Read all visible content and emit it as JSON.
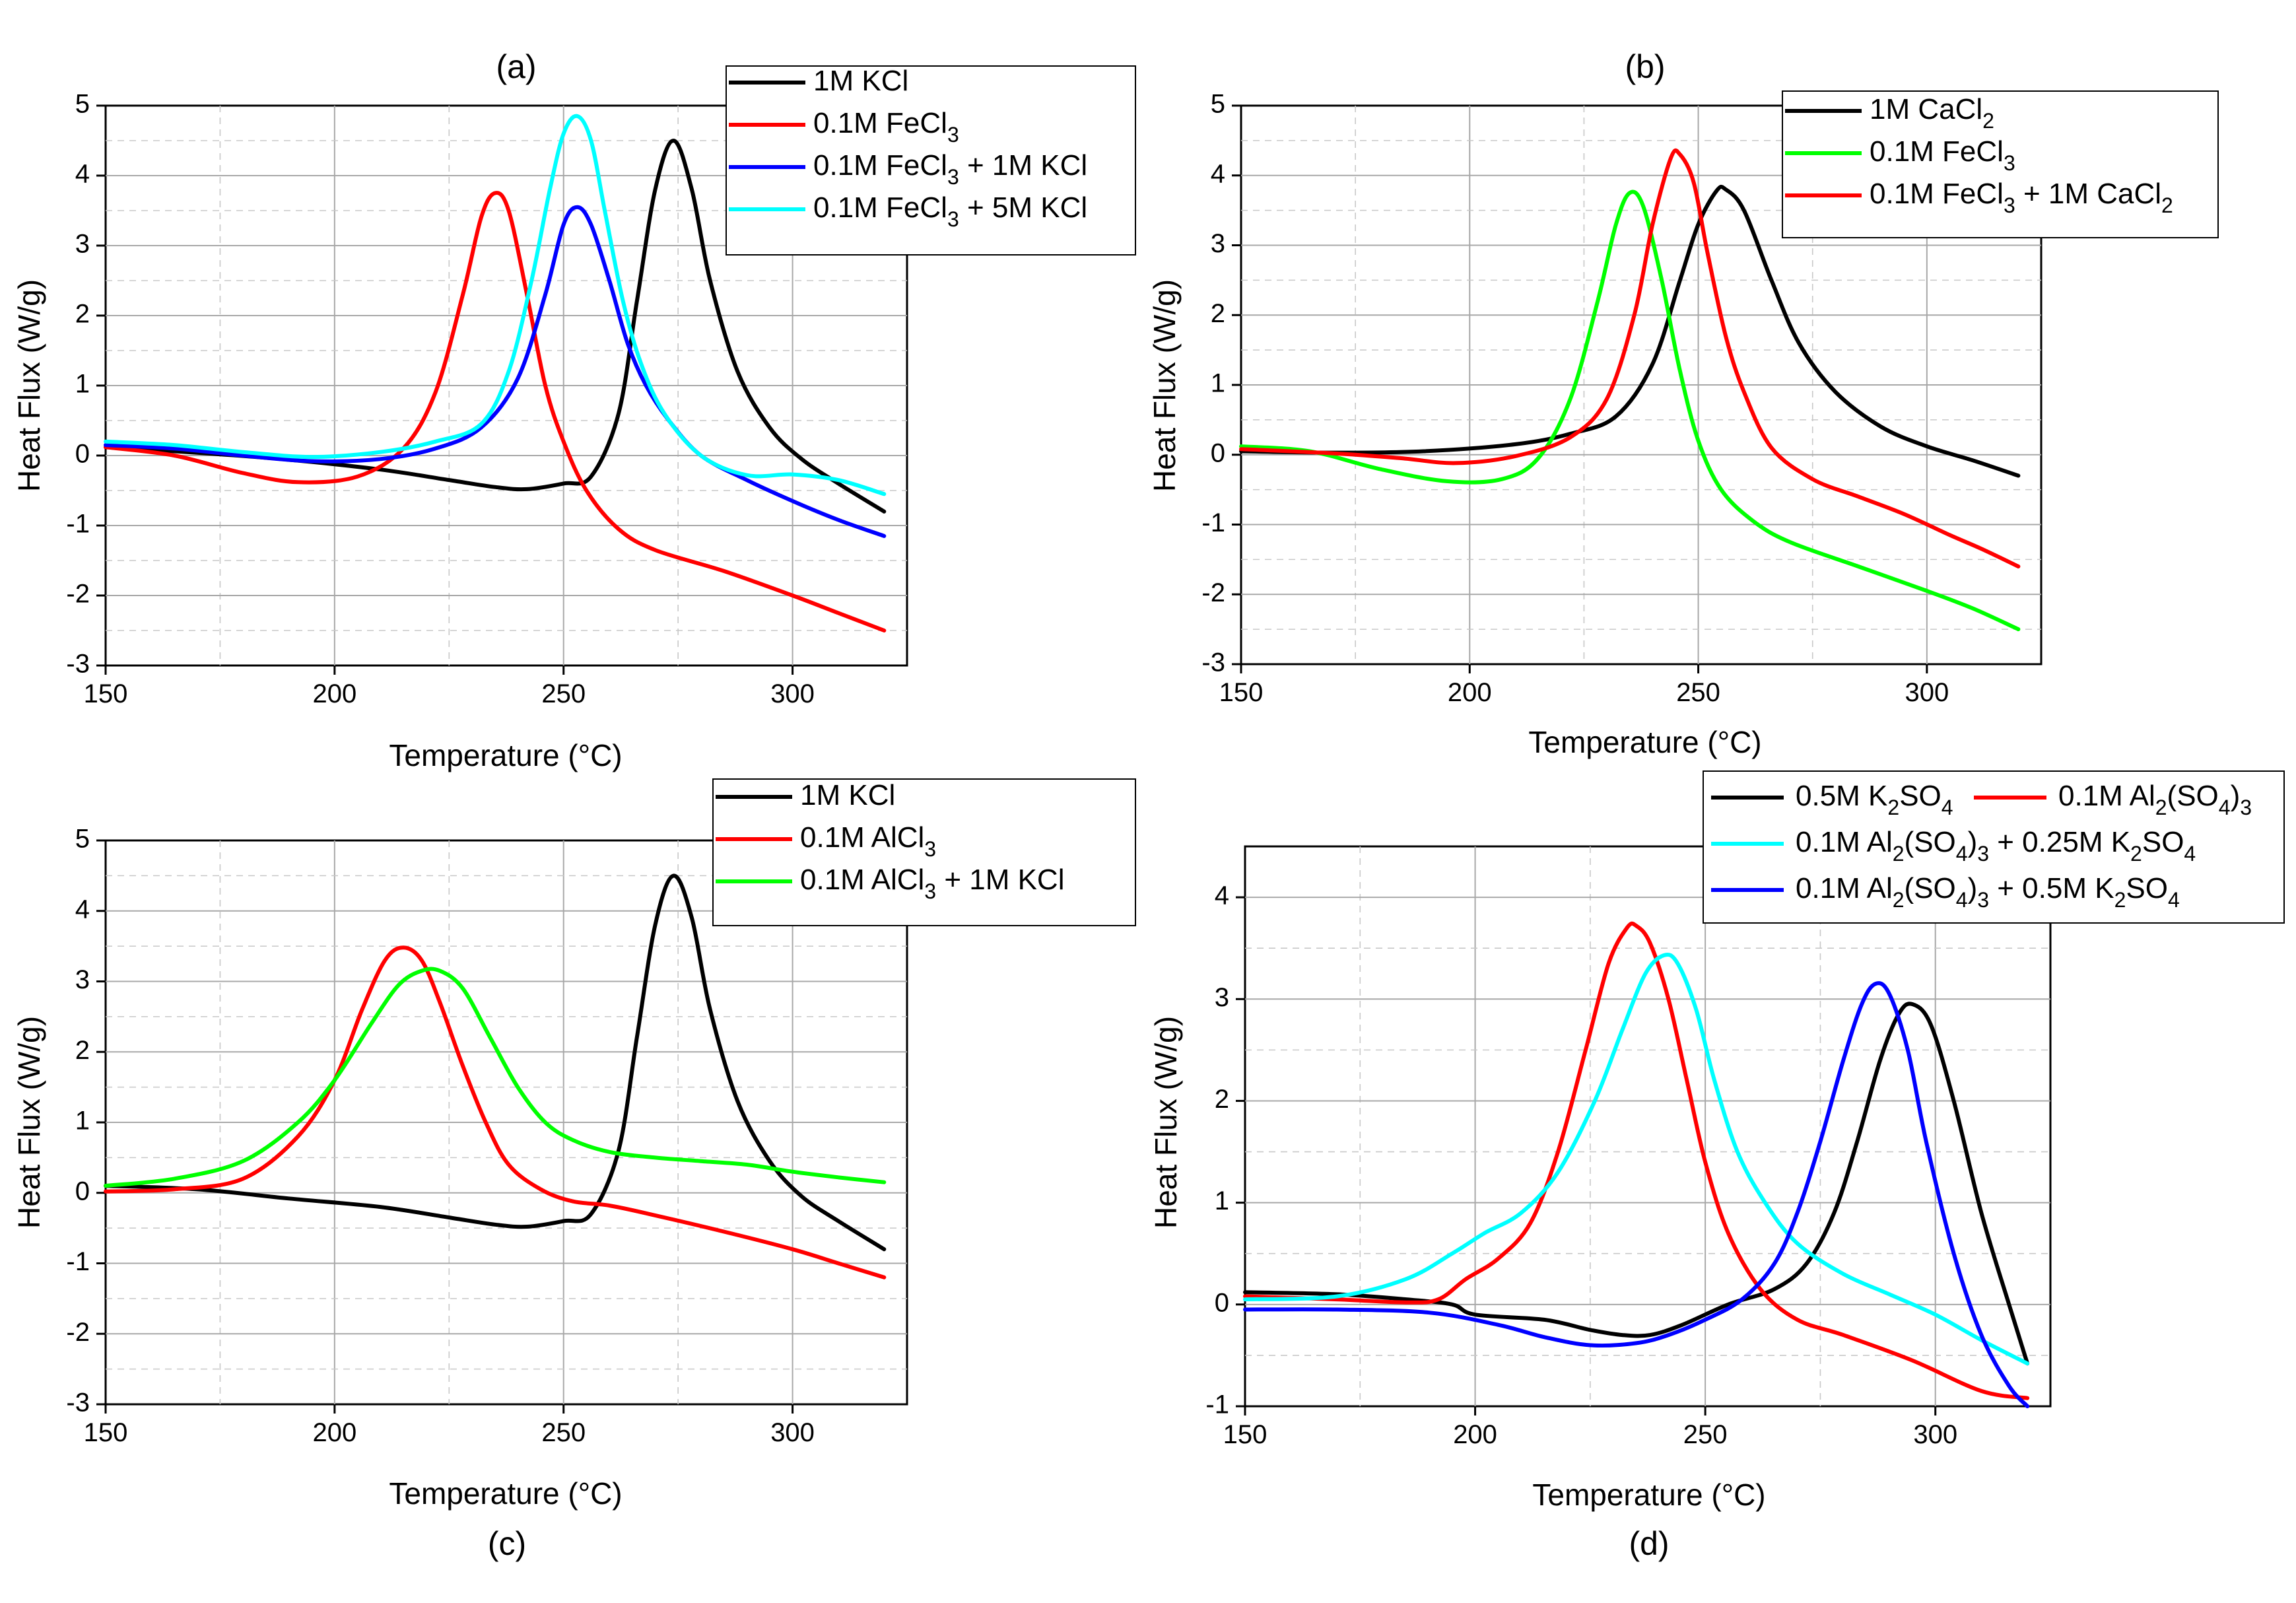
{
  "chart_data": [
    {
      "panel": "a",
      "type": "line",
      "title": "(a)",
      "xlabel": "Temperature (°C)",
      "ylabel": "Heat Flux (W/g)",
      "xlim": [
        150,
        325
      ],
      "ylim": [
        -3,
        5
      ],
      "xticks": [
        150,
        200,
        250,
        300
      ],
      "yticks": [
        -3,
        -2,
        -1,
        0,
        1,
        2,
        3,
        4,
        5
      ],
      "grid": true,
      "legend_position": "top-right",
      "series": [
        {
          "name": "1M KCl",
          "legend": [
            [
              "1M KCl",
              ""
            ]
          ],
          "color": "#000000",
          "x": [
            150,
            170,
            190,
            210,
            225,
            235,
            242,
            250,
            256,
            262,
            266,
            270,
            274,
            278,
            282,
            288,
            295,
            302,
            310,
            320
          ],
          "y": [
            0.12,
            0.04,
            -0.06,
            -0.2,
            -0.35,
            -0.45,
            -0.48,
            -0.4,
            -0.3,
            0.6,
            2.2,
            3.8,
            4.5,
            3.8,
            2.5,
            1.2,
            0.4,
            -0.05,
            -0.4,
            -0.8
          ]
        },
        {
          "name": "0.1M FeCl3",
          "legend": [
            [
              "0.1M FeCl",
              ""
            ],
            [
              "3",
              "sub"
            ]
          ],
          "color": "#ff0000",
          "x": [
            150,
            165,
            180,
            192,
            205,
            215,
            222,
            228,
            232,
            235,
            238,
            242,
            246,
            250,
            255,
            262,
            270,
            285,
            300,
            310,
            320
          ],
          "y": [
            0.12,
            0.0,
            -0.25,
            -0.38,
            -0.3,
            0.1,
            0.9,
            2.3,
            3.4,
            3.75,
            3.5,
            2.3,
            1.0,
            0.2,
            -0.5,
            -1.05,
            -1.35,
            -1.65,
            -2.0,
            -2.25,
            -2.5
          ]
        },
        {
          "name": "0.1M FeCl3 + 1M KCl",
          "legend": [
            [
              "0.1M FeCl",
              ""
            ],
            [
              "3",
              "sub"
            ],
            [
              " + 1M KCl",
              ""
            ]
          ],
          "color": "#0000ff",
          "x": [
            150,
            165,
            180,
            195,
            210,
            222,
            232,
            240,
            246,
            250,
            253,
            256,
            260,
            264,
            268,
            273,
            280,
            290,
            300,
            310,
            320
          ],
          "y": [
            0.15,
            0.1,
            0.0,
            -0.08,
            -0.05,
            0.1,
            0.4,
            1.1,
            2.3,
            3.3,
            3.55,
            3.3,
            2.5,
            1.6,
            1.0,
            0.5,
            0.0,
            -0.35,
            -0.65,
            -0.92,
            -1.15
          ]
        },
        {
          "name": "0.1M FeCl3 + 5M KCl",
          "legend": [
            [
              "0.1M FeCl",
              ""
            ],
            [
              "3",
              "sub"
            ],
            [
              " + 5M KCl",
              ""
            ]
          ],
          "color": "#00ffff",
          "x": [
            150,
            165,
            180,
            195,
            210,
            222,
            232,
            238,
            243,
            247,
            250,
            253,
            256,
            259,
            263,
            267,
            272,
            280,
            290,
            300,
            310,
            320
          ],
          "y": [
            0.2,
            0.15,
            0.05,
            -0.02,
            0.05,
            0.2,
            0.45,
            1.2,
            2.5,
            3.8,
            4.6,
            4.85,
            4.5,
            3.5,
            2.2,
            1.3,
            0.6,
            0.0,
            -0.28,
            -0.27,
            -0.35,
            -0.55
          ]
        }
      ]
    },
    {
      "panel": "b",
      "type": "line",
      "title": "(b)",
      "xlabel": "Temperature (°C)",
      "ylabel": "Heat Flux (W/g)",
      "xlim": [
        150,
        325
      ],
      "ylim": [
        -3,
        5
      ],
      "xticks": [
        150,
        200,
        250,
        300
      ],
      "yticks": [
        -3,
        -2,
        -1,
        0,
        1,
        2,
        3,
        4,
        5
      ],
      "grid": true,
      "legend_position": "top-right",
      "series": [
        {
          "name": "1M CaCl2",
          "legend": [
            [
              "1M CaCl",
              ""
            ],
            [
              "2",
              "sub"
            ]
          ],
          "color": "#000000",
          "x": [
            150,
            170,
            190,
            210,
            222,
            232,
            240,
            246,
            250,
            254,
            256,
            260,
            266,
            272,
            280,
            290,
            300,
            310,
            320
          ],
          "y": [
            0.05,
            0.03,
            0.05,
            0.15,
            0.3,
            0.55,
            1.3,
            2.5,
            3.3,
            3.78,
            3.8,
            3.5,
            2.5,
            1.6,
            0.9,
            0.4,
            0.12,
            -0.08,
            -0.3
          ]
        },
        {
          "name": "0.1M FeCl3",
          "legend": [
            [
              "0.1M FeCl",
              ""
            ],
            [
              "3",
              "sub"
            ]
          ],
          "color": "#00ff00",
          "x": [
            150,
            165,
            180,
            195,
            207,
            215,
            222,
            228,
            232,
            235,
            238,
            242,
            246,
            250,
            255,
            262,
            270,
            285,
            300,
            310,
            320
          ],
          "y": [
            0.12,
            0.05,
            -0.2,
            -0.38,
            -0.35,
            -0.05,
            0.8,
            2.2,
            3.3,
            3.75,
            3.55,
            2.5,
            1.2,
            0.2,
            -0.5,
            -0.95,
            -1.25,
            -1.6,
            -1.95,
            -2.2,
            -2.5
          ]
        },
        {
          "name": "0.1M FeCl3 + 1M CaCl2",
          "legend": [
            [
              "0.1M FeCl",
              ""
            ],
            [
              "3",
              "sub"
            ],
            [
              " + 1M CaCl",
              ""
            ],
            [
              "2",
              "sub"
            ]
          ],
          "color": "#ff0000",
          "x": [
            150,
            170,
            185,
            197,
            210,
            222,
            230,
            236,
            240,
            244,
            246,
            249,
            252,
            256,
            260,
            266,
            275,
            285,
            295,
            305,
            312,
            320
          ],
          "y": [
            0.08,
            0.02,
            -0.05,
            -0.12,
            -0.02,
            0.25,
            0.8,
            2.0,
            3.3,
            4.25,
            4.3,
            3.9,
            2.9,
            1.7,
            0.9,
            0.1,
            -0.35,
            -0.6,
            -0.85,
            -1.15,
            -1.35,
            -1.6
          ]
        }
      ]
    },
    {
      "panel": "c",
      "type": "line",
      "title": "(c)",
      "xlabel": "Temperature (°C)",
      "ylabel": "Heat Flux (W/g)",
      "xlim": [
        150,
        325
      ],
      "ylim": [
        -3,
        5
      ],
      "xticks": [
        150,
        200,
        250,
        300
      ],
      "yticks": [
        -3,
        -2,
        -1,
        0,
        1,
        2,
        3,
        4,
        5
      ],
      "grid": true,
      "legend_position": "top-right",
      "series": [
        {
          "name": "1M KCl",
          "legend": [
            [
              "1M KCl",
              ""
            ]
          ],
          "color": "#000000",
          "x": [
            150,
            170,
            190,
            210,
            225,
            235,
            242,
            250,
            256,
            262,
            266,
            270,
            274,
            278,
            282,
            288,
            295,
            302,
            310,
            320
          ],
          "y": [
            0.1,
            0.05,
            -0.08,
            -0.2,
            -0.35,
            -0.45,
            -0.48,
            -0.4,
            -0.3,
            0.6,
            2.2,
            3.8,
            4.5,
            3.9,
            2.6,
            1.3,
            0.45,
            -0.05,
            -0.4,
            -0.8
          ]
        },
        {
          "name": "0.1M AlCl3",
          "legend": [
            [
              "0.1M AlCl",
              ""
            ],
            [
              "3",
              "sub"
            ]
          ],
          "color": "#ff0000",
          "x": [
            150,
            165,
            180,
            192,
            200,
            206,
            211,
            215,
            219,
            223,
            228,
            233,
            238,
            245,
            252,
            260,
            270,
            285,
            300,
            310,
            320
          ],
          "y": [
            0.02,
            0.05,
            0.2,
            0.8,
            1.6,
            2.6,
            3.3,
            3.48,
            3.3,
            2.7,
            1.8,
            1.0,
            0.4,
            0.05,
            -0.12,
            -0.18,
            -0.32,
            -0.55,
            -0.8,
            -1.0,
            -1.2
          ]
        },
        {
          "name": "0.1M AlCl3 + 1M KCl",
          "legend": [
            [
              "0.1M AlCl",
              ""
            ],
            [
              "3",
              "sub"
            ],
            [
              " + 1M KCl",
              ""
            ]
          ],
          "color": "#00ff00",
          "x": [
            150,
            165,
            180,
            192,
            200,
            208,
            214,
            219,
            223,
            228,
            234,
            240,
            246,
            252,
            260,
            270,
            280,
            290,
            300,
            310,
            320
          ],
          "y": [
            0.1,
            0.2,
            0.45,
            1.0,
            1.6,
            2.4,
            2.95,
            3.15,
            3.15,
            2.9,
            2.2,
            1.5,
            1.0,
            0.75,
            0.58,
            0.5,
            0.45,
            0.4,
            0.3,
            0.22,
            0.15
          ]
        }
      ]
    },
    {
      "panel": "d",
      "type": "line",
      "title": "(d)",
      "xlabel": "Temperature (°C)",
      "ylabel": "Heat Flux (W/g)",
      "xlim": [
        150,
        325
      ],
      "ylim": [
        -1,
        4.5
      ],
      "xticks": [
        150,
        200,
        250,
        300
      ],
      "yticks": [
        -1,
        0,
        1,
        2,
        3,
        4
      ],
      "grid": true,
      "legend_position": "top-right",
      "series": [
        {
          "name": "0.5M K2SO4",
          "legend": [
            [
              "0.5M K",
              ""
            ],
            [
              "2",
              "sub"
            ],
            [
              "SO",
              ""
            ],
            [
              "4",
              "sub"
            ]
          ],
          "color": "#000000",
          "x": [
            150,
            170,
            185,
            195,
            200,
            215,
            225,
            232,
            238,
            245,
            255,
            265,
            272,
            278,
            283,
            288,
            292,
            295,
            299,
            304,
            310,
            316,
            320
          ],
          "y": [
            0.12,
            0.1,
            0.05,
            0.0,
            -0.1,
            -0.15,
            -0.25,
            -0.3,
            -0.3,
            -0.2,
            0.0,
            0.15,
            0.4,
            0.9,
            1.6,
            2.4,
            2.85,
            2.95,
            2.75,
            2.0,
            0.9,
            0.0,
            -0.58
          ]
        },
        {
          "name": "0.1M Al2(SO4)3",
          "legend": [
            [
              "0.1M Al",
              ""
            ],
            [
              "2",
              "sub"
            ],
            [
              "(SO",
              ""
            ],
            [
              "4",
              "sub"
            ],
            [
              ")",
              ""
            ],
            [
              "3",
              "sub"
            ]
          ],
          "color": "#ff0000",
          "x": [
            150,
            170,
            185,
            192,
            198,
            205,
            212,
            218,
            224,
            229,
            233,
            235,
            238,
            242,
            246,
            250,
            255,
            262,
            270,
            280,
            295,
            310,
            320
          ],
          "y": [
            0.08,
            0.05,
            0.02,
            0.05,
            0.25,
            0.45,
            0.8,
            1.5,
            2.5,
            3.35,
            3.7,
            3.72,
            3.55,
            3.0,
            2.2,
            1.4,
            0.7,
            0.15,
            -0.15,
            -0.3,
            -0.55,
            -0.85,
            -0.92
          ]
        },
        {
          "name": "0.1M Al2(SO4)3 + 0.25M K2SO4",
          "legend": [
            [
              "0.1M Al",
              ""
            ],
            [
              "2",
              "sub"
            ],
            [
              "(SO",
              ""
            ],
            [
              "4",
              "sub"
            ],
            [
              ")",
              ""
            ],
            [
              "3",
              "sub"
            ],
            [
              " + 0.25M K",
              ""
            ],
            [
              "2",
              "sub"
            ],
            [
              "SO",
              ""
            ],
            [
              "4",
              "sub"
            ]
          ],
          "color": "#00ffff",
          "x": [
            150,
            170,
            185,
            195,
            202,
            210,
            218,
            226,
            232,
            237,
            241,
            244,
            248,
            252,
            257,
            263,
            270,
            280,
            290,
            300,
            310,
            320
          ],
          "y": [
            0.05,
            0.08,
            0.25,
            0.5,
            0.7,
            0.9,
            1.3,
            2.0,
            2.7,
            3.25,
            3.43,
            3.35,
            2.9,
            2.2,
            1.5,
            1.0,
            0.6,
            0.3,
            0.1,
            -0.1,
            -0.35,
            -0.58
          ]
        },
        {
          "name": "0.1M Al2(SO4)3 + 0.5M K2SO4",
          "legend": [
            [
              "0.1M Al",
              ""
            ],
            [
              "2",
              "sub"
            ],
            [
              "(SO",
              ""
            ],
            [
              "4",
              "sub"
            ],
            [
              ")",
              ""
            ],
            [
              "3",
              "sub"
            ],
            [
              " + 0.5M K",
              ""
            ],
            [
              "2",
              "sub"
            ],
            [
              "SO",
              ""
            ],
            [
              "4",
              "sub"
            ]
          ],
          "color": "#0000ff",
          "x": [
            150,
            170,
            190,
            205,
            215,
            225,
            235,
            242,
            250,
            258,
            265,
            270,
            275,
            280,
            284,
            287,
            290,
            294,
            298,
            304,
            310,
            316,
            320
          ],
          "y": [
            -0.05,
            -0.05,
            -0.08,
            -0.2,
            -0.32,
            -0.4,
            -0.38,
            -0.3,
            -0.15,
            0.05,
            0.4,
            0.9,
            1.6,
            2.4,
            2.95,
            3.15,
            3.05,
            2.5,
            1.6,
            0.5,
            -0.3,
            -0.8,
            -1.0
          ]
        }
      ]
    }
  ]
}
